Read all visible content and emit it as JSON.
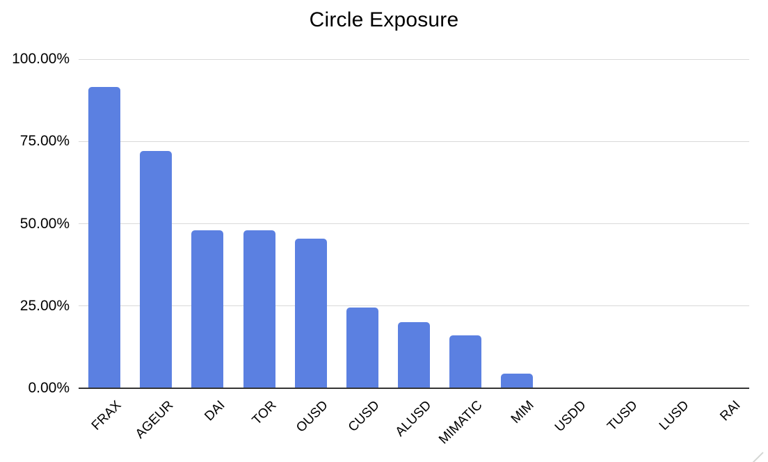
{
  "chart_data": {
    "type": "bar",
    "title": "Circle Exposure",
    "categories": [
      "FRAX",
      "AGEUR",
      "DAI",
      "TOR",
      "OUSD",
      "CUSD",
      "ALUSD",
      "MIMATIC",
      "MIM",
      "USDD",
      "TUSD",
      "LUSD",
      "RAI"
    ],
    "values": [
      91.5,
      72,
      48,
      48,
      45.5,
      24.5,
      20,
      16,
      4.5,
      0,
      0,
      0,
      0
    ],
    "series_name": "Circle Exposure",
    "value_format": "percent",
    "xlabel": "",
    "ylabel": "",
    "ylim": [
      0,
      100
    ],
    "yticks": [
      0,
      25,
      50,
      75,
      100
    ],
    "ytick_labels": [
      "0.00%",
      "25.00%",
      "50.00%",
      "75.00%",
      "100.00%"
    ],
    "xtick_rotation_degrees": 45,
    "grid": true,
    "legend_position": "none",
    "bar_color": "#5b80e1",
    "gridline_color": "#d9d9d9",
    "axis_line_color": "#333333",
    "text_color": "#000000",
    "background_color": "#ffffff"
  }
}
